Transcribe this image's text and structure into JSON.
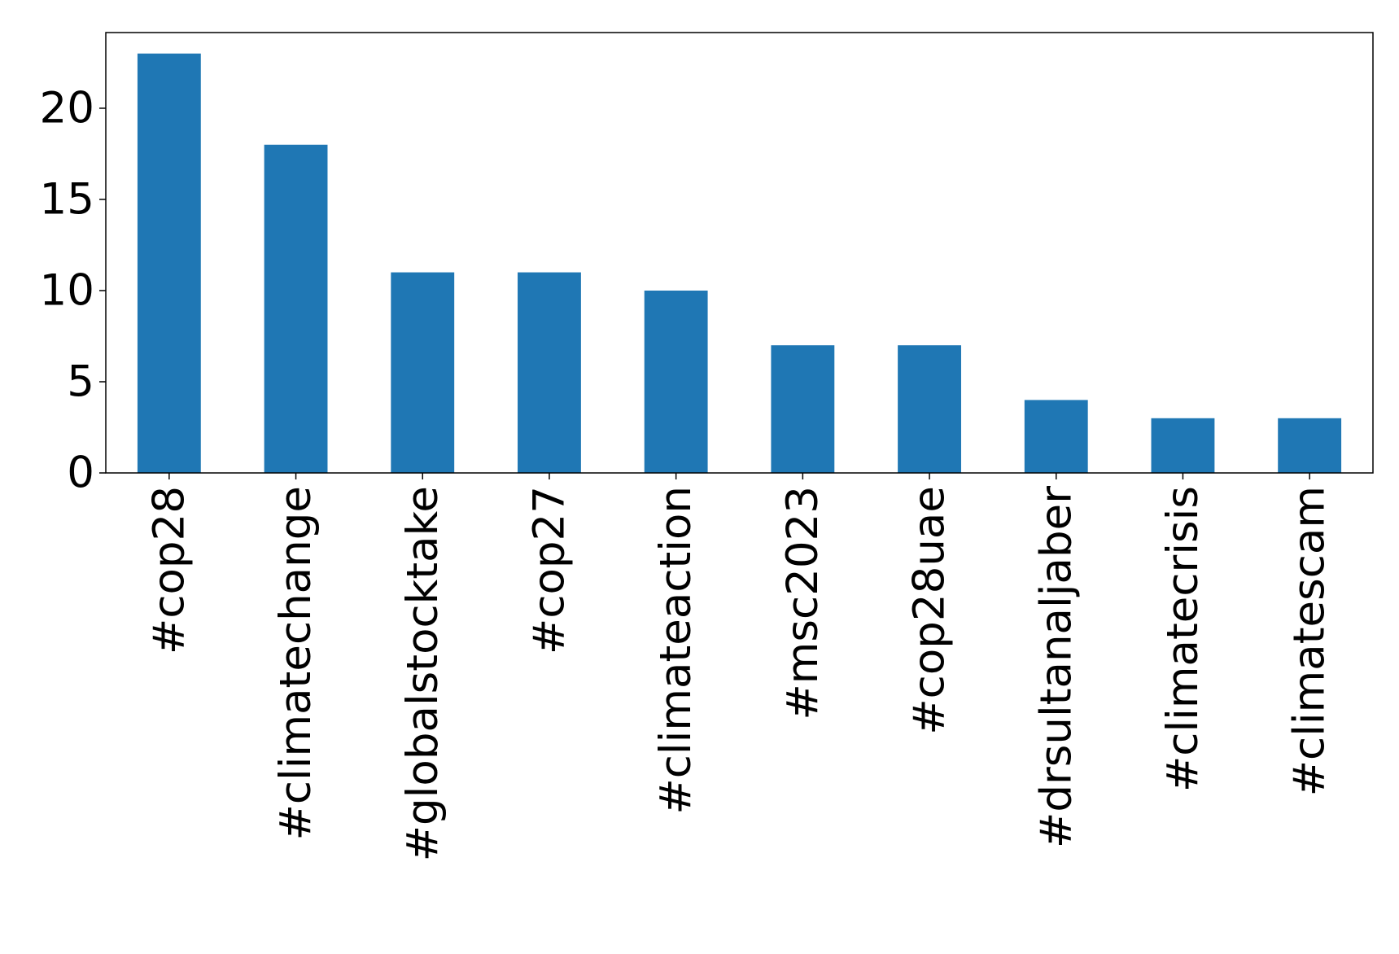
{
  "chart_data": {
    "type": "bar",
    "categories": [
      "#cop28",
      "#climatechange",
      "#globalstocktake",
      "#cop27",
      "#climateaction",
      "#msc2023",
      "#cop28uae",
      "#drsultanaljaber",
      "#climatecrisis",
      "#climatescam"
    ],
    "values": [
      23,
      18,
      11,
      11,
      10,
      7,
      7,
      4,
      3,
      3
    ],
    "color": "#1f77b4",
    "ylim": [
      0,
      24.15
    ],
    "yticks": [
      0,
      5,
      10,
      15,
      20
    ],
    "grid": false
  }
}
